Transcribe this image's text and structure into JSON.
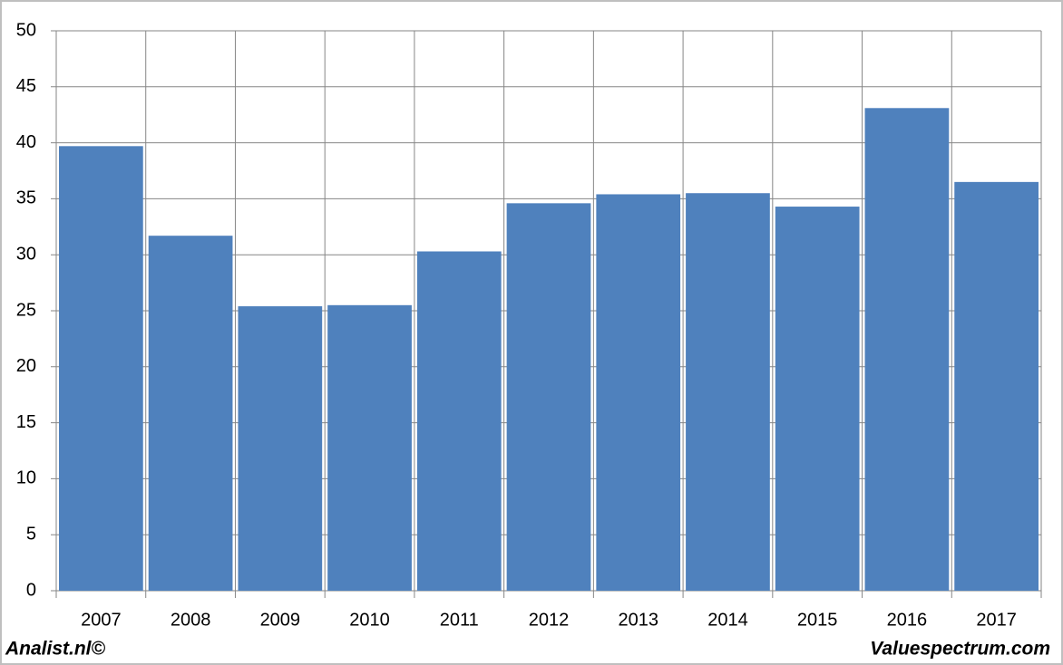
{
  "chart_data": {
    "type": "bar",
    "categories": [
      "2007",
      "2008",
      "2009",
      "2010",
      "2011",
      "2012",
      "2013",
      "2014",
      "2015",
      "2016",
      "2017"
    ],
    "values": [
      39.7,
      31.7,
      25.4,
      25.5,
      30.3,
      34.6,
      35.4,
      35.5,
      34.3,
      43.1,
      36.5
    ],
    "color": "#4f81bd",
    "ylim": [
      0,
      50
    ],
    "yticks": [
      0,
      5,
      10,
      15,
      20,
      25,
      30,
      35,
      40,
      45,
      50
    ],
    "grid": true,
    "annotations": [
      "Analist.nl©",
      "Valuespectrum.com"
    ]
  }
}
